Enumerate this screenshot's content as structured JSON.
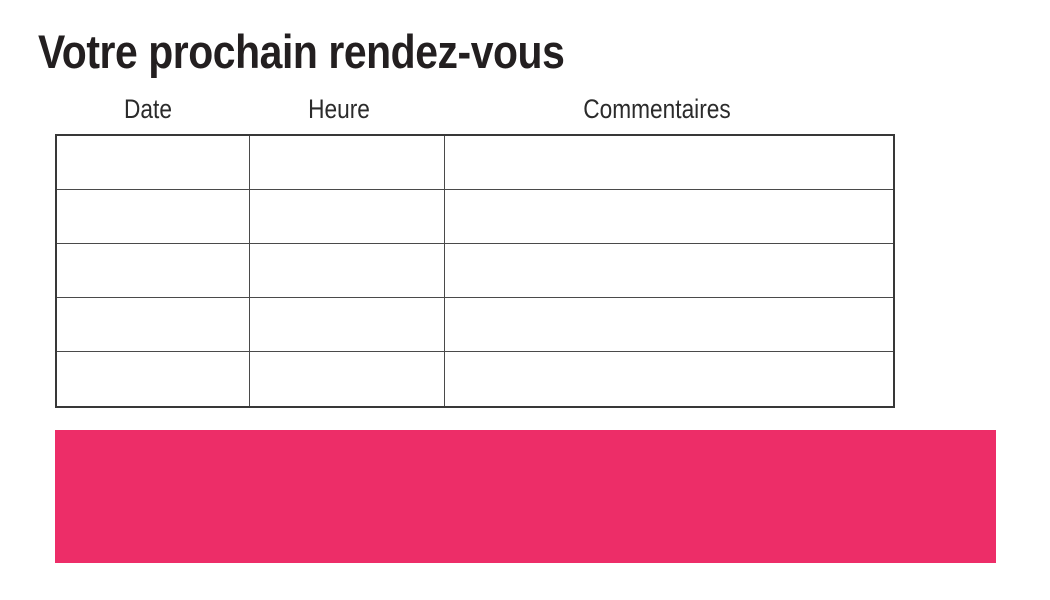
{
  "page": {
    "title": "Votre prochain rendez-vous"
  },
  "table": {
    "columns": [
      "Date",
      "Heure",
      "Commentaires"
    ],
    "rows": [
      [
        "",
        "",
        ""
      ],
      [
        "",
        "",
        ""
      ],
      [
        "",
        "",
        ""
      ],
      [
        "",
        "",
        ""
      ],
      [
        "",
        "",
        ""
      ]
    ]
  },
  "colors": {
    "accent_pink": "#ED2D68",
    "table_border": "#383838",
    "table_inner_border": "#4a4a4a",
    "text": "#231f20"
  }
}
